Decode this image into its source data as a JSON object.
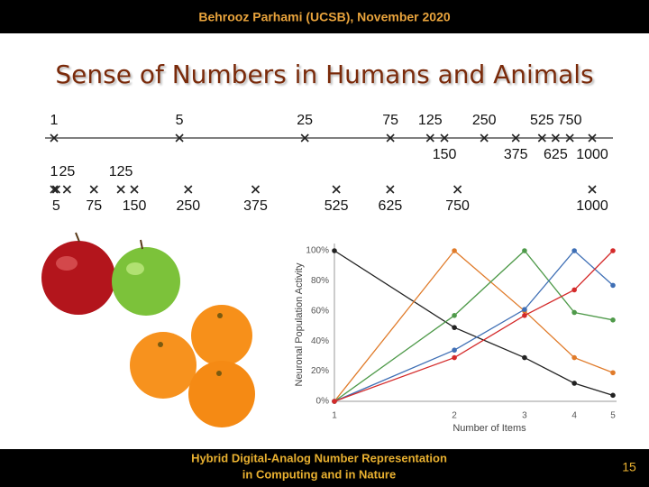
{
  "header": "Behrooz Parhami (UCSB), November 2020",
  "title": "Sense of Numbers in Humans and Animals",
  "number_lines": [
    {
      "scale": "log",
      "labels_above": [
        1,
        5,
        25,
        75,
        125,
        250,
        525,
        750
      ],
      "labels_below": [
        150,
        375,
        625,
        1000
      ]
    },
    {
      "scale": "linear",
      "labels_above": [
        1,
        25,
        125
      ],
      "labels_below": [
        5,
        75,
        150,
        250,
        375,
        525,
        625,
        750,
        1000
      ]
    }
  ],
  "chart_data": {
    "type": "line",
    "x_label": "Number of Items",
    "y_label": "Neuronal Population Activity",
    "x": [
      1,
      2,
      3,
      4,
      5
    ],
    "xlim": [
      1,
      5
    ],
    "xticks": [
      1,
      2,
      3,
      4,
      5
    ],
    "xscale": "log",
    "ylim": [
      0,
      100
    ],
    "yticks": [
      {
        "value": 0,
        "label": "0%"
      },
      {
        "value": 20,
        "label": "20%"
      },
      {
        "value": 40,
        "label": "40%"
      },
      {
        "value": 60,
        "label": "60%"
      },
      {
        "value": 80,
        "label": "80%"
      },
      {
        "value": 100,
        "label": "100%"
      }
    ],
    "series": [
      {
        "color": "#222222",
        "values": [
          100,
          49,
          29,
          12,
          4
        ]
      },
      {
        "color": "#e07b2a",
        "values": [
          0,
          100,
          60,
          29,
          19
        ]
      },
      {
        "color": "#4f9a4a",
        "values": [
          0,
          57,
          100,
          59,
          54
        ]
      },
      {
        "color": "#3f6fb5",
        "values": [
          0,
          34,
          61,
          100,
          77
        ]
      },
      {
        "color": "#d42a2a",
        "values": [
          0,
          29,
          57,
          74,
          100
        ]
      }
    ]
  },
  "footer": {
    "lines": [
      "Hybrid Digital-Analog Number Representation",
      "in Computing and in Nature"
    ],
    "page": "15"
  }
}
